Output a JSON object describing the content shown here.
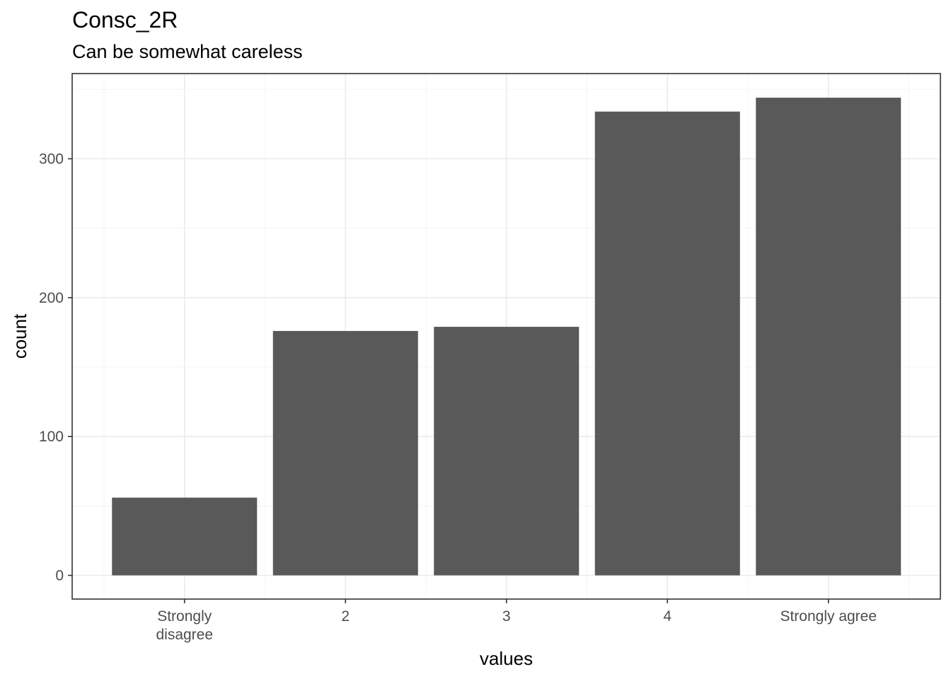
{
  "chart_data": {
    "type": "bar",
    "title": "Consc_2R",
    "subtitle": "Can be somewhat careless",
    "xlabel": "values",
    "ylabel": "count",
    "categories": [
      "Strongly disagree",
      "2",
      "3",
      "4",
      "Strongly agree"
    ],
    "category_label_lines": [
      [
        "Strongly",
        "disagree"
      ],
      [
        "2"
      ],
      [
        "3"
      ],
      [
        "4"
      ],
      [
        "Strongly agree"
      ]
    ],
    "values": [
      56,
      176,
      179,
      334,
      344
    ],
    "ylim": [
      0,
      361.2
    ],
    "yticks": [
      0,
      100,
      200,
      300
    ],
    "grid": true,
    "legend": "none",
    "colors": {
      "bar": "#595959",
      "grid_major": "#ebebeb",
      "grid_minor": "#f5f5f5",
      "panel_border": "#333333",
      "tick_text": "#4d4d4d"
    }
  }
}
